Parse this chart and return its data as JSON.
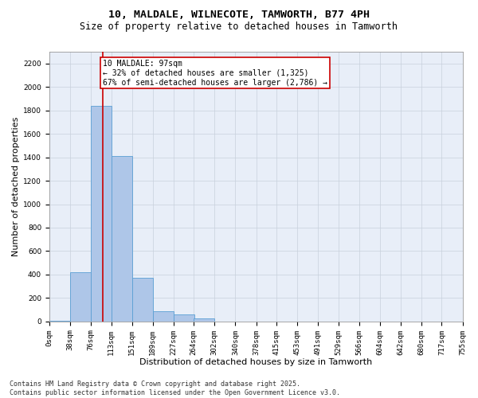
{
  "title_line1": "10, MALDALE, WILNECOTE, TAMWORTH, B77 4PH",
  "title_line2": "Size of property relative to detached houses in Tamworth",
  "xlabel": "Distribution of detached houses by size in Tamworth",
  "ylabel": "Number of detached properties",
  "bar_bins": [
    0,
    38,
    76,
    113,
    151,
    189,
    227,
    264,
    302,
    340,
    378,
    415,
    453,
    491,
    529,
    566,
    604,
    642,
    680,
    717,
    755
  ],
  "bar_heights": [
    5,
    420,
    1840,
    1410,
    370,
    90,
    60,
    25,
    0,
    0,
    0,
    0,
    0,
    0,
    0,
    0,
    0,
    0,
    0,
    0
  ],
  "bar_color": "#aec6e8",
  "bar_edge_color": "#5a9fd4",
  "property_size": 97,
  "property_label": "10 MALDALE: 97sqm",
  "annotation_line1": "← 32% of detached houses are smaller (1,325)",
  "annotation_line2": "67% of semi-detached houses are larger (2,786) →",
  "vline_color": "#cc0000",
  "annotation_box_edge": "#cc0000",
  "annotation_box_face": "#ffffff",
  "ylim": [
    0,
    2300
  ],
  "yticks": [
    0,
    200,
    400,
    600,
    800,
    1000,
    1200,
    1400,
    1600,
    1800,
    2000,
    2200
  ],
  "grid_color": "#c8d0dc",
  "bg_color": "#e8eef8",
  "footer_line1": "Contains HM Land Registry data © Crown copyright and database right 2025.",
  "footer_line2": "Contains public sector information licensed under the Open Government Licence v3.0.",
  "title_fontsize": 9.5,
  "subtitle_fontsize": 8.5,
  "axis_label_fontsize": 8,
  "tick_fontsize": 6.5,
  "annotation_fontsize": 7,
  "footer_fontsize": 6
}
